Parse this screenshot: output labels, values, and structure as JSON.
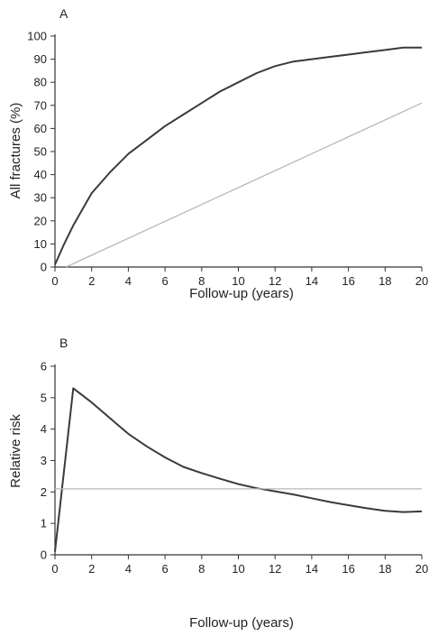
{
  "chart_data": [
    {
      "panel_label": "A",
      "type": "line",
      "xlabel": "Follow-up (years)",
      "ylabel": "All fractures (%)",
      "xlim": [
        0,
        20
      ],
      "ylim": [
        0,
        100
      ],
      "xticks": [
        0,
        2,
        4,
        6,
        8,
        10,
        12,
        14,
        16,
        18,
        20
      ],
      "yticks": [
        0,
        10,
        20,
        30,
        40,
        50,
        60,
        70,
        80,
        90,
        100
      ],
      "grid": false,
      "colors": [
        "#3a3a3a",
        "#b8b8b8"
      ],
      "series": [
        {
          "x": [
            0,
            0.5,
            1,
            2,
            3,
            4,
            5,
            6,
            7,
            8,
            9,
            10,
            11,
            12,
            13,
            14,
            15,
            16,
            17,
            18,
            19,
            20
          ],
          "values": [
            1,
            10,
            18,
            32,
            41,
            49,
            55,
            61,
            66,
            71,
            76,
            80,
            84,
            87,
            89,
            90,
            91,
            92,
            93,
            94,
            95,
            95
          ]
        },
        {
          "x": [
            0.6,
            20
          ],
          "values": [
            0,
            71
          ]
        }
      ]
    },
    {
      "panel_label": "B",
      "type": "line",
      "xlabel": "Follow-up (years)",
      "ylabel": "Relative risk",
      "xlim": [
        0,
        20
      ],
      "ylim": [
        0,
        6
      ],
      "xticks": [
        0,
        2,
        4,
        6,
        8,
        10,
        12,
        14,
        16,
        18,
        20
      ],
      "yticks": [
        0,
        1,
        2,
        3,
        4,
        5,
        6
      ],
      "grid": false,
      "colors": [
        "#3a3a3a",
        "#b8b8b8"
      ],
      "series": [
        {
          "x": [
            0,
            1,
            2,
            3,
            4,
            5,
            6,
            7,
            8,
            9,
            10,
            11,
            12,
            13,
            14,
            15,
            16,
            17,
            18,
            19,
            20
          ],
          "values": [
            0.1,
            5.3,
            4.85,
            4.35,
            3.85,
            3.45,
            3.1,
            2.8,
            2.6,
            2.42,
            2.25,
            2.12,
            2.02,
            1.92,
            1.8,
            1.68,
            1.58,
            1.48,
            1.4,
            1.36,
            1.38
          ]
        },
        {
          "x": [
            0,
            20
          ],
          "values": [
            2.1,
            2.1
          ]
        }
      ]
    }
  ]
}
